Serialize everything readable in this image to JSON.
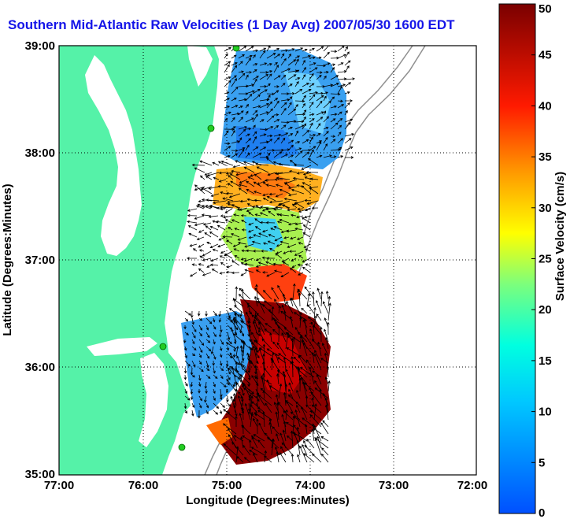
{
  "title": "Southern Mid-Atlantic Raw Velocities (1 Day Avg) 2007/05/30 1600 EDT",
  "x_axis": {
    "label": "Longitude (Degrees:Minutes)",
    "ticks": [
      "77:00",
      "76:00",
      "75:00",
      "74:00",
      "73:00",
      "72:00"
    ]
  },
  "y_axis": {
    "label": "Latitude (Degrees:Minutes)",
    "ticks": [
      "39:00",
      "38:00",
      "37:00",
      "36:00",
      "35:00"
    ]
  },
  "colorbar": {
    "label": "Surface Velocity (cm/s)",
    "min": 0,
    "max": 50,
    "ticks": [
      "0",
      "5",
      "10",
      "15",
      "20",
      "25",
      "30",
      "35",
      "40",
      "45",
      "50"
    ]
  },
  "colors": {
    "land": "#55f2a8",
    "water": "#ffffff",
    "title": "#1515e8",
    "station": "#22cc22",
    "grid": "#000000",
    "bathymetry": "#909090"
  },
  "grid": "dotted",
  "stations": [
    "station-1",
    "station-2",
    "station-3",
    "station-4"
  ]
}
